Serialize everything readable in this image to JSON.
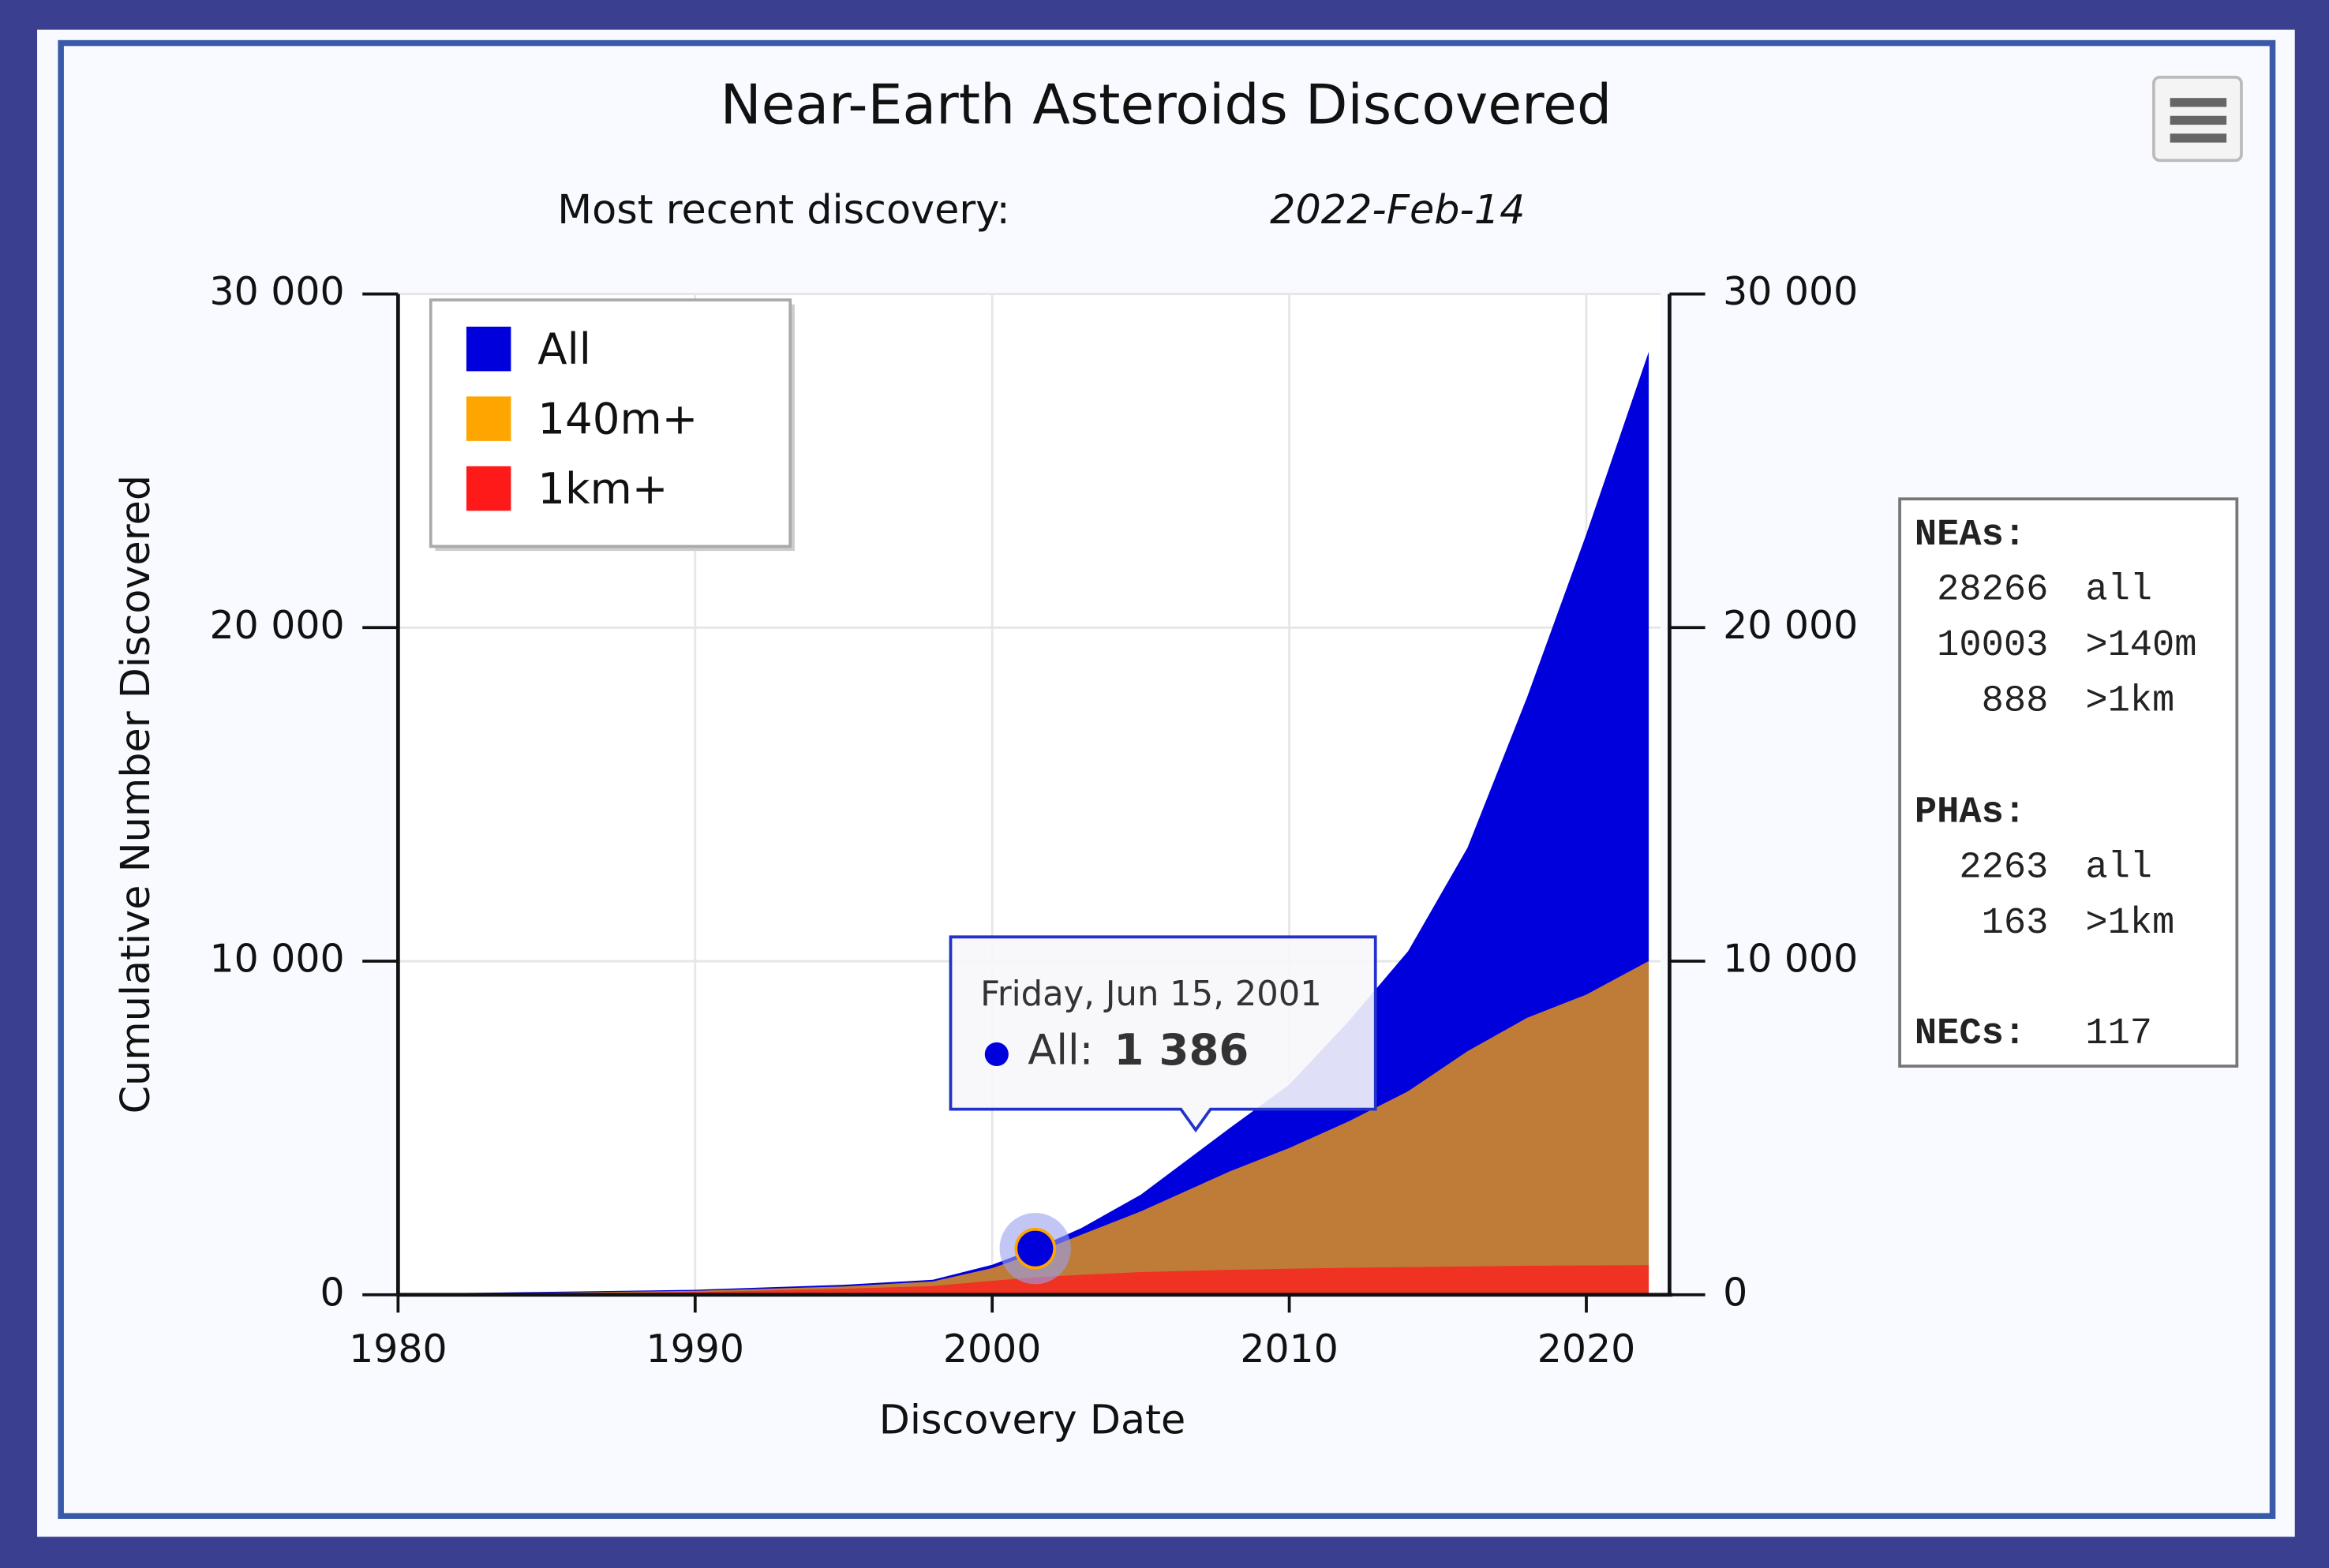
{
  "chart_data": {
    "type": "area",
    "title": "Near-Earth Asteroids Discovered",
    "subtitle": "Most recent discovery:",
    "subtitle_date": "2022-Feb-14",
    "x_label": "Discovery Date",
    "y_label": "Cumulative Number Discovered",
    "x": [
      1982,
      1990,
      1995,
      1998,
      2000,
      2001.45,
      2003,
      2005,
      2008,
      2010,
      2012,
      2014,
      2016,
      2018,
      2020,
      2022.1
    ],
    "series": [
      {
        "name": "All",
        "color": "#0000dd",
        "values": [
          50,
          150,
          300,
          450,
          900,
          1386,
          2000,
          3000,
          5000,
          6300,
          8200,
          10300,
          13400,
          17900,
          22800,
          28266
        ]
      },
      {
        "name": "140m+",
        "color": "#ffa500",
        "values": [
          30,
          120,
          250,
          400,
          800,
          1250,
          1800,
          2500,
          3700,
          4400,
          5200,
          6100,
          7300,
          8300,
          9000,
          10003
        ]
      },
      {
        "name": "1km+",
        "color": "#ff1a1a",
        "values": [
          20,
          80,
          180,
          260,
          420,
          520,
          600,
          680,
          750,
          780,
          810,
          830,
          850,
          870,
          880,
          888
        ]
      }
    ],
    "xlim": [
      1980,
      2022.5
    ],
    "xticks": [
      1980,
      1990,
      2000,
      2010,
      2020
    ],
    "ylim": [
      0,
      30000
    ],
    "yticks": [
      0,
      {
        "value": 10000,
        "label": "10 000"
      },
      {
        "value": 20000,
        "label": "20 000"
      },
      {
        "value": 30000,
        "label": "30 000"
      }
    ],
    "y2lim": [
      0,
      30000
    ],
    "y2ticks": [
      0,
      {
        "value": 10000,
        "label": "10 000"
      },
      {
        "value": 20000,
        "label": "20 000"
      },
      {
        "value": 30000,
        "label": "30 000"
      }
    ],
    "grid": true,
    "legend": "top-left",
    "tooltip": {
      "date": "Friday, Jun 15, 2001",
      "label": "All:",
      "value_label": "1 386"
    }
  },
  "info": {
    "neas": "NEAs:",
    "neas_rows": [
      [
        28266,
        "all"
      ],
      [
        10003,
        ">140m"
      ],
      [
        888,
        ">1km"
      ]
    ],
    "phas": "PHAs:",
    "phas_rows": [
      [
        2263,
        "all"
      ],
      [
        163,
        ">1km"
      ]
    ],
    "necs": "NECs:",
    "necs_value": 117
  }
}
